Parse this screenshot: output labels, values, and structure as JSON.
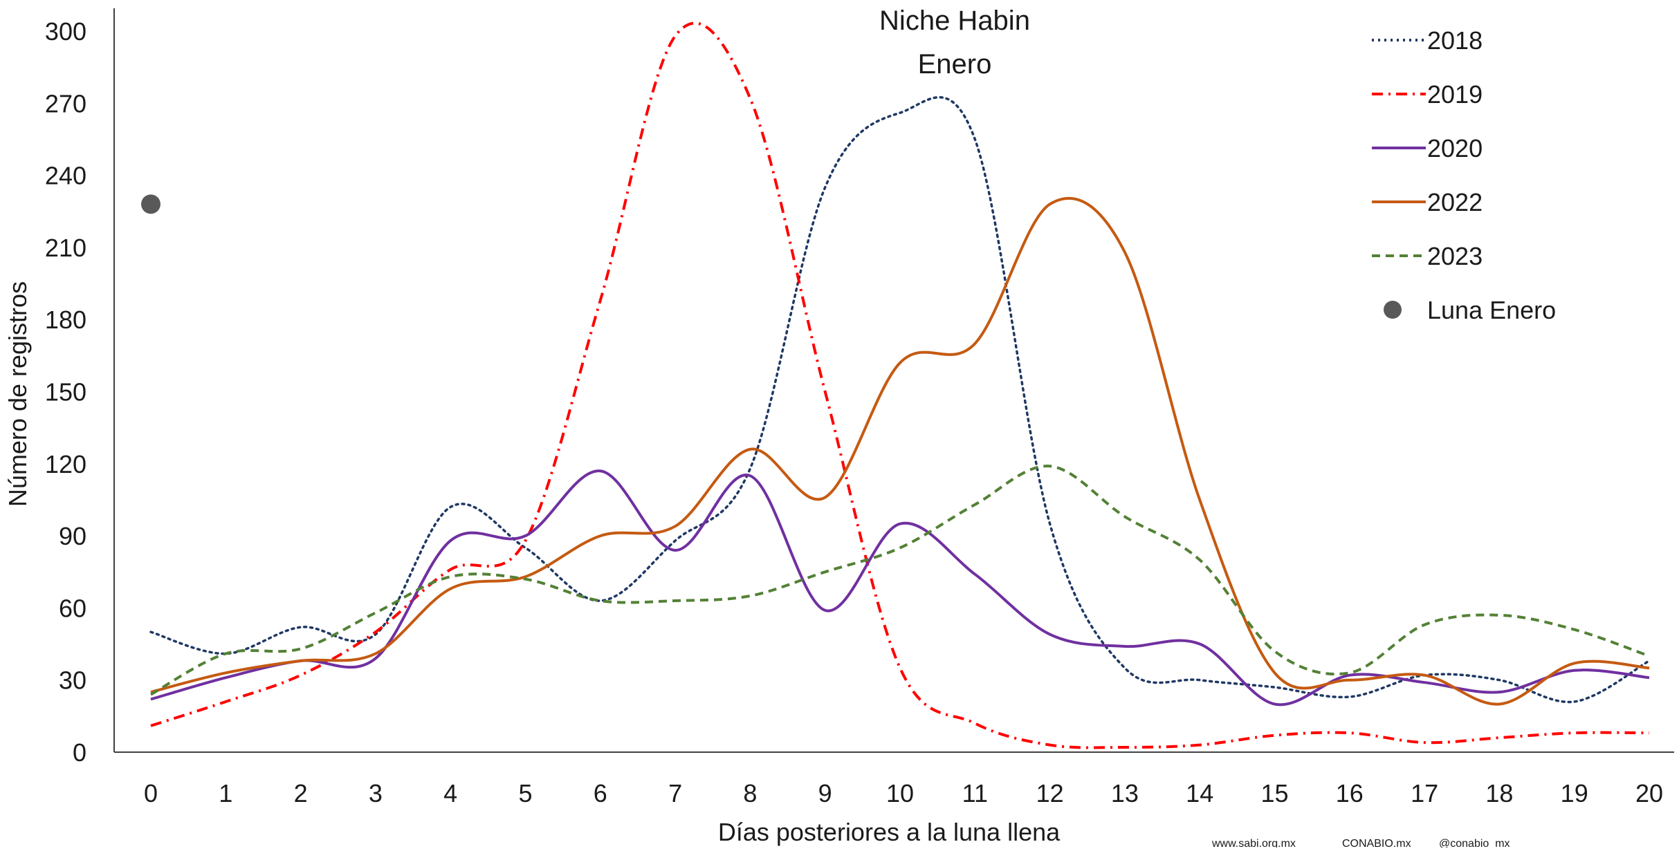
{
  "chart_data": {
    "type": "line",
    "title": "Niche Habin",
    "subtitle": "Enero",
    "xlabel": "Días posteriores a la luna llena",
    "ylabel": "Número de registros",
    "x": [
      0,
      1,
      2,
      3,
      4,
      5,
      6,
      7,
      8,
      9,
      10,
      11,
      12,
      13,
      14,
      15,
      16,
      17,
      18,
      19,
      20
    ],
    "xlim": [
      0,
      20
    ],
    "ylim": [
      0,
      300
    ],
    "yticks": [
      0,
      30,
      60,
      90,
      120,
      150,
      180,
      210,
      240,
      270,
      300
    ],
    "grid": false,
    "legend_position": "top-right",
    "series": [
      {
        "name": "2018",
        "color": "#1f3864",
        "dash": "dotted",
        "values": [
          50,
          41,
          52,
          49,
          102,
          85,
          63,
          88,
          118,
          235,
          266,
          255,
          95,
          35,
          30,
          27,
          23,
          32,
          30,
          21,
          38
        ]
      },
      {
        "name": "2019",
        "color": "#ff0000",
        "dash": "dashdot",
        "values": [
          11,
          21,
          32,
          50,
          76,
          88,
          188,
          298,
          272,
          150,
          35,
          12,
          3,
          2,
          3,
          7,
          8,
          4,
          6,
          8,
          8
        ]
      },
      {
        "name": "2020",
        "color": "#7030a0",
        "dash": "solid",
        "values": [
          22,
          31,
          38,
          39,
          88,
          90,
          117,
          84,
          115,
          59,
          95,
          74,
          49,
          44,
          45,
          20,
          32,
          29,
          25,
          34,
          31
        ]
      },
      {
        "name": "2022",
        "color": "#c55a11",
        "dash": "solid",
        "values": [
          25,
          33,
          38,
          41,
          68,
          73,
          90,
          94,
          126,
          106,
          162,
          170,
          228,
          208,
          105,
          33,
          30,
          32,
          20,
          37,
          35
        ]
      },
      {
        "name": "2023",
        "color": "#538135",
        "dash": "dashed",
        "values": [
          24,
          41,
          43,
          58,
          73,
          72,
          63,
          63,
          65,
          75,
          85,
          103,
          119,
          98,
          80,
          42,
          33,
          53,
          57,
          51,
          40
        ]
      }
    ],
    "markers": [
      {
        "name": "Luna Enero",
        "color": "#595959",
        "x": 0,
        "y": 228
      }
    ]
  },
  "footer": {
    "website": "www.sabi.org.mx",
    "facebook": "CONABIO.mx",
    "social": "@conabio_mx"
  }
}
